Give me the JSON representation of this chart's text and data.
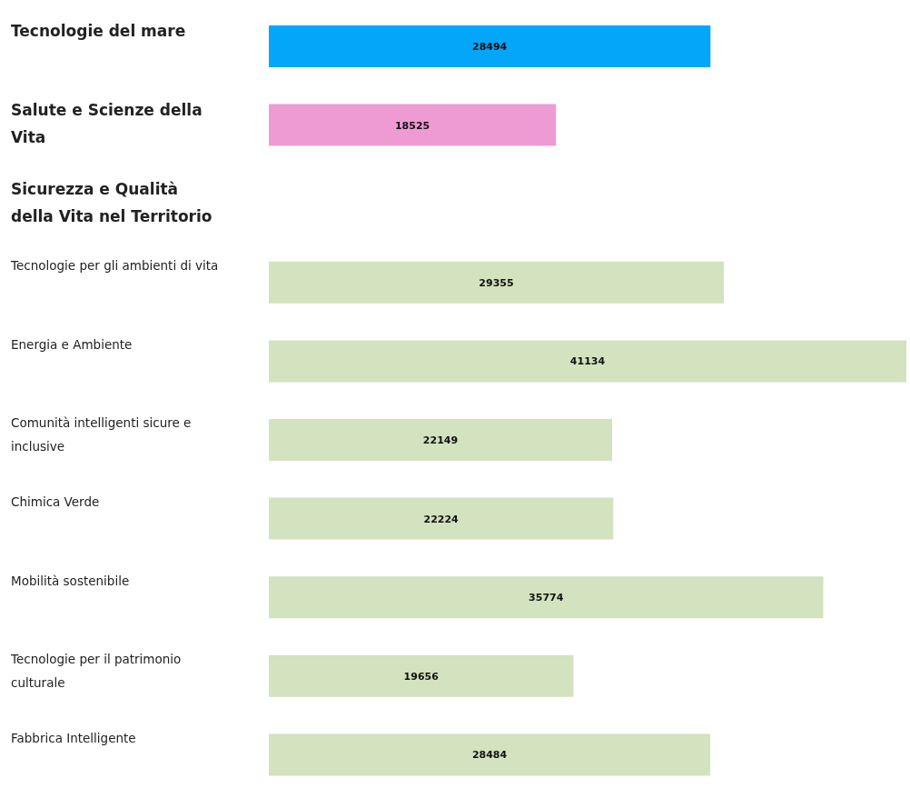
{
  "chart_data": {
    "type": "bar",
    "orientation": "horizontal",
    "categories": [
      "Tecnologie del mare",
      "Salute e Scienze della Vita",
      "Sicurezza e Qualità della Vita nel Territorio",
      "Tecnologie per gli ambienti di vita",
      "Energia e Ambiente",
      "Comunità intelligenti sicure e inclusive",
      "Chimica Verde",
      "Mobilità sostenibile",
      "Tecnologie per il patrimonio culturale",
      "Fabbrica Intelligente"
    ],
    "values": [
      28494,
      18525,
      null,
      29355,
      41134,
      22149,
      22224,
      35774,
      19656,
      28484
    ],
    "colors": [
      "#03a6f8",
      "#ee9bd4",
      null,
      "#d3e2bf",
      "#d3e2bf",
      "#d3e2bf",
      "#d3e2bf",
      "#d3e2bf",
      "#d3e2bf",
      "#d3e2bf"
    ],
    "data_labels": true,
    "grid": false,
    "legend": false
  }
}
